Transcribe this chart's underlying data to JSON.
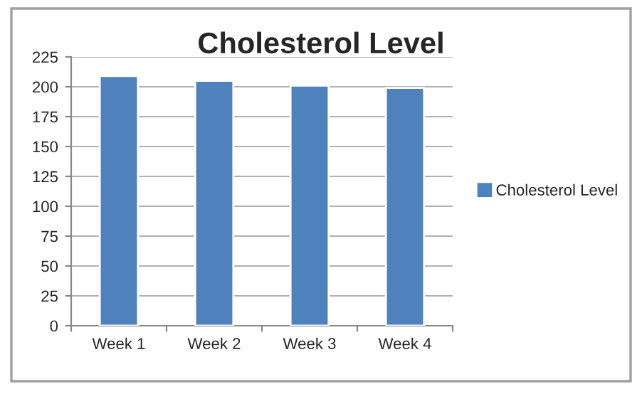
{
  "chart_data": {
    "type": "bar",
    "title": "Cholesterol Level",
    "categories": [
      "Week 1",
      "Week 2",
      "Week 3",
      "Week 4"
    ],
    "series": [
      {
        "name": "Cholesterol Level",
        "color": "#4f81bd",
        "values": [
          209,
          205,
          201,
          199
        ]
      }
    ],
    "ylim": [
      0,
      225
    ],
    "yticks": [
      0,
      25,
      50,
      75,
      100,
      125,
      150,
      175,
      200,
      225
    ],
    "grid": "y",
    "legend": "right"
  }
}
